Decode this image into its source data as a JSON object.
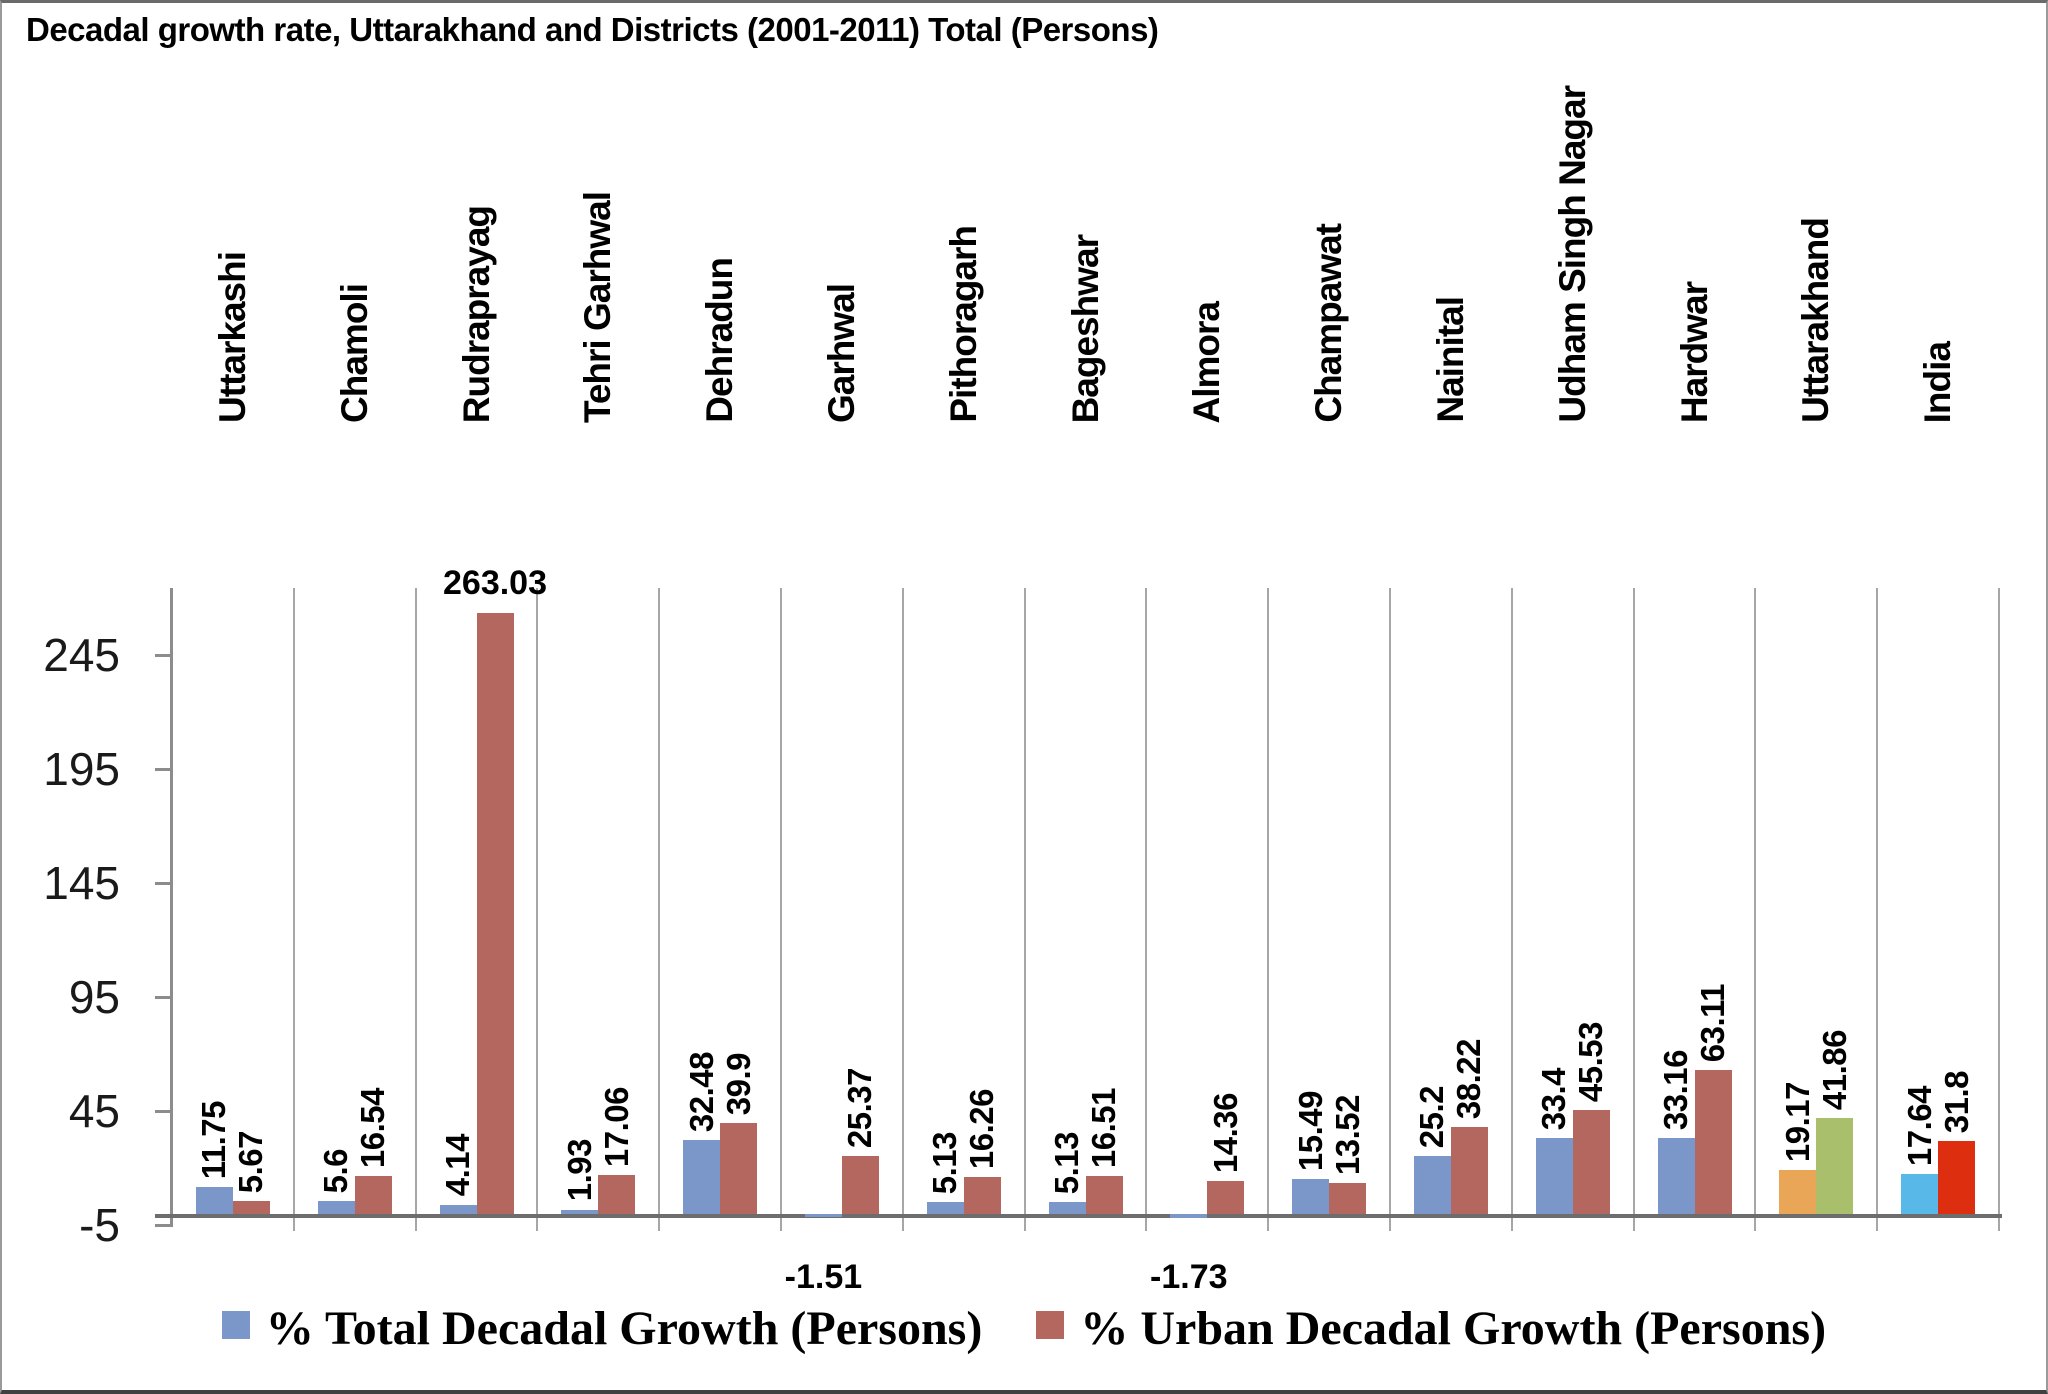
{
  "title": "Decadal growth rate, Uttarakhand and Districts (2001-2011) Total (Persons)",
  "legend": {
    "items": [
      {
        "label": "% Total Decadal Growth (Persons)",
        "color": "#7b96c8"
      },
      {
        "label": "% Urban Decadal Growth (Persons)",
        "color": "#b4675f"
      }
    ]
  },
  "chart_data": {
    "type": "bar",
    "title": "Decadal growth rate, Uttarakhand and Districts (2001-2011) Total (Persons)",
    "categories": [
      "Uttarkashi",
      "Chamoli",
      "Rudraprayag",
      "Tehri Garhwal",
      "Dehradun",
      "Garhwal",
      "Pithoragarh",
      "Bageshwar",
      "Almora",
      "Champawat",
      "Nainital",
      "Udham Singh Nagar",
      "Hardwar",
      "Uttarakhand",
      "India"
    ],
    "series": [
      {
        "name": "% Total Decadal Growth (Persons)",
        "color": "#7b96c8",
        "colors": [
          null,
          null,
          null,
          null,
          null,
          null,
          null,
          null,
          null,
          null,
          null,
          null,
          null,
          "#e9a656",
          "#58b8e8"
        ],
        "values": [
          11.75,
          5.6,
          4.14,
          1.93,
          32.48,
          -1.51,
          5.13,
          5.13,
          -1.73,
          15.49,
          25.2,
          33.4,
          33.16,
          19.17,
          17.64
        ]
      },
      {
        "name": "% Urban Decadal Growth (Persons)",
        "color": "#b4675f",
        "colors": [
          null,
          null,
          null,
          null,
          null,
          null,
          null,
          null,
          null,
          null,
          null,
          null,
          null,
          "#a9bf6b",
          "#dd2f10"
        ],
        "values": [
          5.67,
          16.54,
          263.03,
          17.06,
          39.9,
          25.37,
          16.26,
          16.51,
          14.36,
          13.52,
          38.22,
          45.53,
          63.11,
          41.86,
          31.8
        ]
      }
    ],
    "y_ticks": [
      245,
      195,
      145,
      95,
      45,
      -5
    ],
    "ylim": [
      -5,
      275
    ],
    "grid": "vertical-category-separators",
    "legend_position": "bottom"
  }
}
